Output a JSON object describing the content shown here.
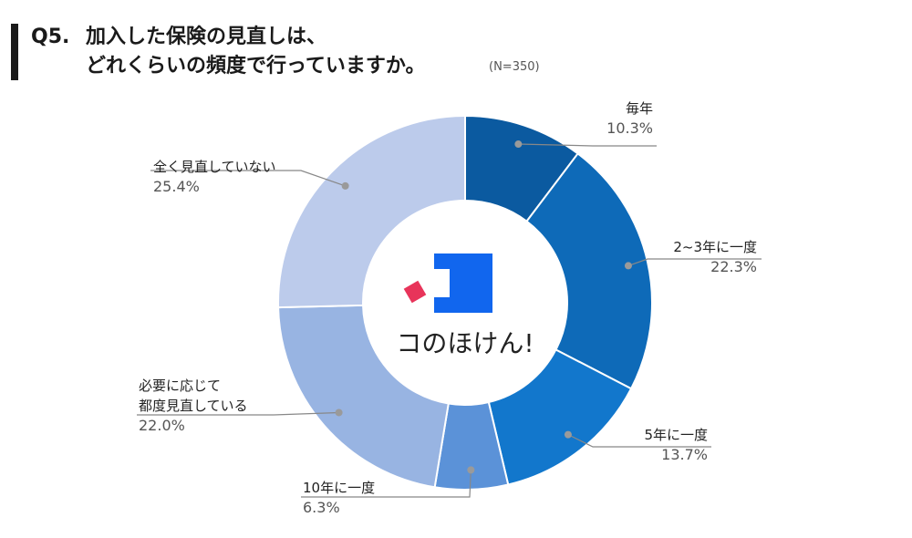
{
  "title": {
    "q": "Q5.",
    "line1": "加入した保険の見直しは、",
    "line2": "どれくらいの頻度で行っていますか。",
    "n": "(N=350)"
  },
  "logo": {
    "text": "コのほけん!",
    "colors": {
      "blue": "#1166ee",
      "red": "#e8345a"
    }
  },
  "chart_data": {
    "type": "pie",
    "donut": true,
    "categories": [
      "毎年",
      "2~3年に一度",
      "5年に一度",
      "10年に一度",
      "必要に応じて都度見直している",
      "全く見直していない"
    ],
    "values": [
      10.3,
      22.3,
      13.7,
      6.3,
      22.0,
      25.4
    ],
    "value_labels": [
      "10.3%",
      "22.3%",
      "13.7%",
      "6.3%",
      "22.0%",
      "25.4%"
    ],
    "colors": [
      "#0b5aa0",
      "#0e6ab8",
      "#1277cc",
      "#5b92d8",
      "#98b4e2",
      "#bccbeb"
    ],
    "unit": "%"
  },
  "labels": [
    {
      "name": "毎年",
      "pct": "10.3%"
    },
    {
      "name": "2~3年に一度",
      "pct": "22.3%"
    },
    {
      "name": "5年に一度",
      "pct": "13.7%"
    },
    {
      "name": "10年に一度",
      "pct": "6.3%"
    },
    {
      "name1": "必要に応じて",
      "name2": "都度見直している",
      "pct": "22.0%"
    },
    {
      "name": "全く見直していない",
      "pct": "25.4%"
    }
  ]
}
